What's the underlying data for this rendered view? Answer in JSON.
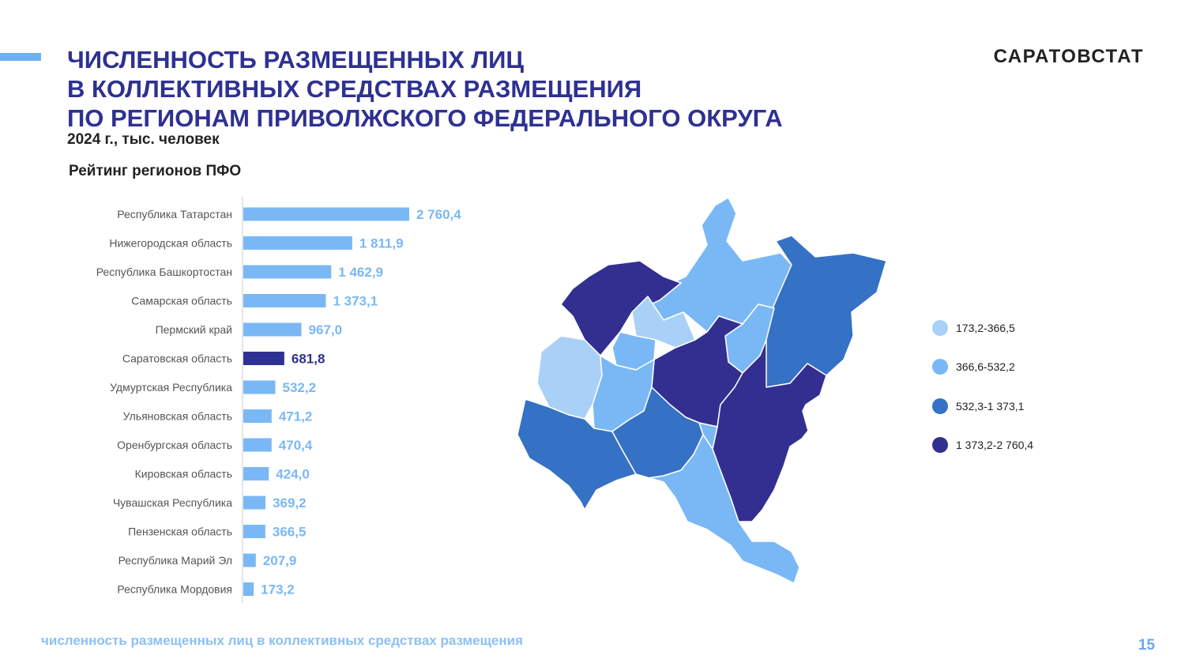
{
  "header": {
    "title_lines": [
      "ЧИСЛЕННОСТЬ РАЗМЕЩЕННЫХ ЛИЦ",
      "В КОЛЛЕКТИВНЫХ СРЕДСТВАХ РАЗМЕЩЕНИЯ",
      "ПО РЕГИОНАМ ПРИВОЛЖСКОГО ФЕДЕРАЛЬНОГО ОКРУГА"
    ],
    "subtitle": "2024 г., тыс. человек",
    "brand": "САРАТОВСТАТ"
  },
  "chart_data": {
    "type": "bar",
    "orientation": "horizontal",
    "title": "Рейтинг регионов ПФО",
    "categories": [
      "Республика Татарстан",
      "Нижегородская область",
      "Республика Башкортостан",
      "Самарская область",
      "Пермский край",
      "Саратовская область",
      "Удмуртская Республика",
      "Ульяновская область",
      "Оренбургская область",
      "Кировская область",
      "Чувашская Республика",
      "Пензенская область",
      "Республика Марий Эл",
      "Республика Мордовия"
    ],
    "values": [
      2760.4,
      1811.9,
      1462.9,
      1373.1,
      967.0,
      681.8,
      532.2,
      471.2,
      470.4,
      424.0,
      369.2,
      366.5,
      207.9,
      173.2
    ],
    "value_labels": [
      "2 760,4",
      "1 811,9",
      "1 462,9",
      "1 373,1",
      "967,0",
      "681,8",
      "532,2",
      "471,2",
      "470,4",
      "424,0",
      "369,2",
      "366,5",
      "207,9",
      "173,2"
    ],
    "highlight_index": 5,
    "bar_color": "#7ab8f5",
    "highlight_color": "#2e3192",
    "label_color": "#7ab8f5",
    "highlight_label_color": "#2e3192",
    "xlim": [
      0,
      2760.4
    ],
    "grid": false
  },
  "map": {
    "legend": [
      {
        "label": "173,2-366,5",
        "color": "#a9d1f7"
      },
      {
        "label": "366,6-532,2",
        "color": "#7ab8f5"
      },
      {
        "label": "532,3-1 373,1",
        "color": "#3571c4"
      },
      {
        "label": "1 373,2-2 760,4",
        "color": "#332f91"
      }
    ]
  },
  "footer": {
    "caption": "численность размещенных лиц в коллективных средствах размещения",
    "page": "15"
  }
}
